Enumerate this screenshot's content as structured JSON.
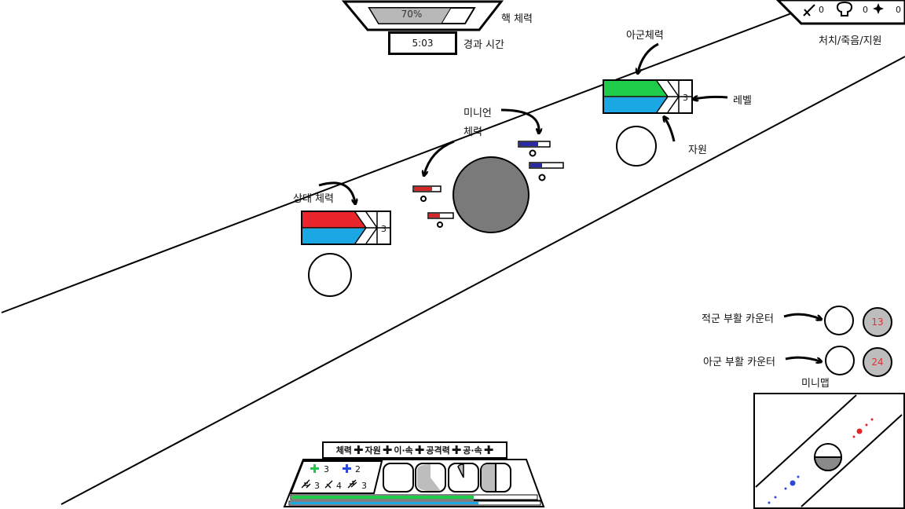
{
  "core": {
    "hp_percent": 70,
    "hp_text": "70%",
    "hp_label": "핵 체력"
  },
  "timer": {
    "value": "5:03",
    "label": "경과 시간"
  },
  "kda": {
    "kills": "0",
    "deaths": "0",
    "assists": "0",
    "label": "처치/죽음/지원"
  },
  "ally_hero": {
    "title": "아군체력",
    "level": "3",
    "level_label": "레벨",
    "resource_label": "자원",
    "hp_fraction": 0.6,
    "resource_fraction": 0.6
  },
  "enemy_hero": {
    "title": "상대 체력",
    "level": "3",
    "hp_fraction": 0.6,
    "resource_fraction": 0.6
  },
  "minion": {
    "label_line1": "미니언",
    "label_line2": "체력"
  },
  "respawn": {
    "enemy_label": "적군 부활 카운터",
    "enemy_count": "13",
    "ally_label": "아군 부활 카운터",
    "ally_count": "24"
  },
  "minimap": {
    "label": "미니맵"
  },
  "upgrade_bar": {
    "items": [
      "체력",
      "자원",
      "이·속",
      "공격력",
      "공·속"
    ]
  },
  "upgrades": {
    "green_count": "3",
    "blue_count": "2",
    "stat1": "3",
    "stat2": "4",
    "stat3": "3"
  },
  "bottom_bars": {
    "hp_fraction": 0.72,
    "resource_fraction": 1.0
  },
  "colors": {
    "ally_hp": "#1fcc4a",
    "resource": "#1ba6e4",
    "enemy_hp": "#e8262c",
    "minion_ally": "#2b2aa6",
    "minion_enemy": "#d02828",
    "respawn_text": "#e03030"
  }
}
